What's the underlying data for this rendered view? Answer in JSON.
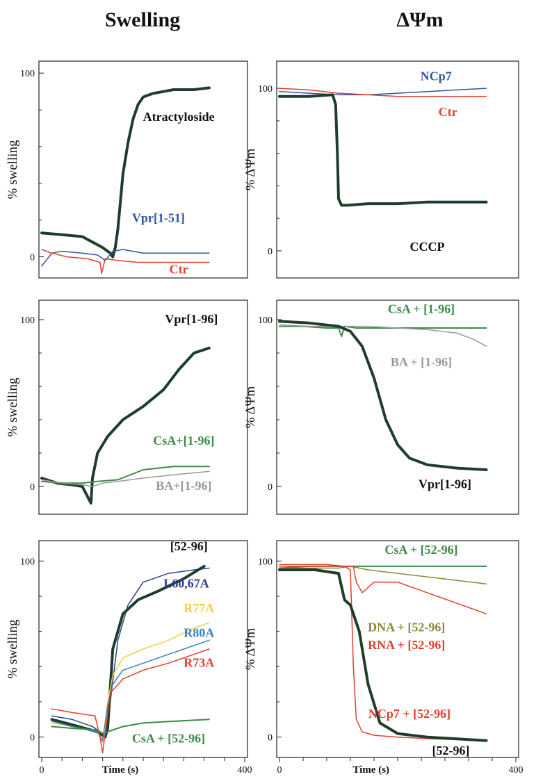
{
  "columns": [
    {
      "title": "Swelling"
    },
    {
      "title": "ΔΨm"
    }
  ],
  "chart_data": [
    {
      "type": "line",
      "panel": "swelling-top",
      "column": 0,
      "row": 0,
      "ylabel": "% swelling",
      "xlabel": "",
      "xlim": [
        0,
        400
      ],
      "ylim": [
        -10,
        105
      ],
      "yticks": [
        "0",
        "100"
      ],
      "series": [
        {
          "name": "Atractyloside",
          "color": "#1f3d2b",
          "width": 4,
          "x": [
            0,
            40,
            80,
            100,
            120,
            135,
            140,
            145,
            150,
            155,
            160,
            170,
            180,
            190,
            200,
            210,
            220,
            240,
            260,
            300,
            330
          ],
          "y": [
            13,
            12,
            11,
            8,
            5,
            2,
            0,
            5,
            15,
            30,
            45,
            62,
            75,
            83,
            87,
            88,
            89,
            90,
            91,
            91,
            92
          ]
        },
        {
          "name": "Vpr[1-51]",
          "color": "#2f56a0",
          "width": 1.5,
          "x": [
            0,
            20,
            40,
            80,
            110,
            125,
            140,
            160,
            200,
            260,
            330
          ],
          "y": [
            -5,
            2,
            3,
            2,
            1,
            -2,
            3,
            4,
            2,
            2,
            2
          ]
        },
        {
          "name": "Ctr",
          "color": "#e0402f",
          "width": 1.5,
          "x": [
            0,
            20,
            50,
            90,
            115,
            118,
            125,
            150,
            190,
            260,
            330
          ],
          "y": [
            4,
            2,
            0,
            -1,
            -3,
            -9,
            -1,
            -2,
            -3,
            -3,
            -3
          ]
        }
      ],
      "annotations": [
        {
          "text": "Atractyloside",
          "color": "#111111",
          "x": 270,
          "y": 74
        },
        {
          "text": "Vpr[1-51]",
          "color": "#2f56a0",
          "x": 230,
          "y": 19
        },
        {
          "text": "Ctr",
          "color": "#e0402f",
          "x": 270,
          "y": -9
        }
      ]
    },
    {
      "type": "line",
      "panel": "dpsim-top",
      "column": 1,
      "row": 0,
      "ylabel": "% ΔΨm",
      "xlabel": "",
      "xlim": [
        0,
        400
      ],
      "ylim": [
        -15,
        115
      ],
      "yticks": [
        "0",
        "100"
      ],
      "series": [
        {
          "name": "NCp7",
          "color": "#2f56a0",
          "width": 1.5,
          "x": [
            0,
            50,
            100,
            150,
            200,
            250,
            300,
            350
          ],
          "y": [
            98,
            97,
            96,
            96,
            97,
            98,
            99,
            100
          ]
        },
        {
          "name": "Ctr",
          "color": "#e0402f",
          "width": 1.5,
          "x": [
            0,
            50,
            100,
            150,
            200,
            250,
            300,
            350
          ],
          "y": [
            100,
            99,
            97,
            96,
            95,
            95,
            95,
            95
          ]
        },
        {
          "name": "CCCP",
          "color": "#1f3d2b",
          "width": 4,
          "x": [
            0,
            50,
            90,
            95,
            98,
            100,
            105,
            110,
            115,
            150,
            200,
            250,
            300,
            350
          ],
          "y": [
            95,
            95,
            96,
            90,
            60,
            32,
            28,
            28,
            28,
            29,
            29,
            30,
            30,
            30
          ]
        }
      ],
      "annotations": [
        {
          "text": "NCp7",
          "color": "#2f56a0",
          "x": 265,
          "y": 105
        },
        {
          "text": "Ctr",
          "color": "#e0402f",
          "x": 285,
          "y": 83
        },
        {
          "text": "CCCP",
          "color": "#111111",
          "x": 250,
          "y": 0
        }
      ]
    },
    {
      "type": "line",
      "panel": "swelling-middle",
      "column": 0,
      "row": 1,
      "ylabel": "% swelling",
      "xlabel": "",
      "xlim": [
        0,
        400
      ],
      "ylim": [
        -15,
        110
      ],
      "yticks": [
        "0",
        "100"
      ],
      "series": [
        {
          "name": "Vpr[1-96]",
          "color": "#1f3d2b",
          "width": 4,
          "x": [
            0,
            30,
            60,
            80,
            97,
            100,
            110,
            130,
            160,
            200,
            240,
            270,
            300,
            330
          ],
          "y": [
            5,
            2,
            1,
            0,
            -10,
            5,
            20,
            30,
            40,
            48,
            58,
            70,
            80,
            83
          ]
        },
        {
          "name": "CsA+[1-96]",
          "color": "#3d8a4a",
          "width": 2,
          "x": [
            0,
            40,
            80,
            110,
            150,
            200,
            260,
            330
          ],
          "y": [
            3,
            2,
            2,
            3,
            4,
            10,
            12,
            12
          ]
        },
        {
          "name": "BA+[1-96]",
          "color": "#999999",
          "width": 1.5,
          "x": [
            0,
            40,
            80,
            100,
            120,
            150,
            200,
            260,
            330
          ],
          "y": [
            4,
            2,
            1,
            0,
            2,
            3,
            5,
            7,
            9
          ]
        }
      ],
      "annotations": [
        {
          "text": "Vpr[1-96]",
          "color": "#111111",
          "x": 295,
          "y": 98
        },
        {
          "text": "CsA+[1-96]",
          "color": "#3d8a4a",
          "x": 280,
          "y": 25
        },
        {
          "text": "BA+[1-96]",
          "color": "#999999",
          "x": 280,
          "y": -2
        }
      ]
    },
    {
      "type": "line",
      "panel": "dpsim-middle",
      "column": 1,
      "row": 1,
      "ylabel": "% ΔΨm",
      "xlabel": "",
      "xlim": [
        0,
        400
      ],
      "ylim": [
        -15,
        110
      ],
      "yticks": [
        "0",
        "100"
      ],
      "series": [
        {
          "name": "CsA + [1-96]",
          "color": "#3d8a4a",
          "width": 2,
          "x": [
            0,
            40,
            80,
            100,
            105,
            110,
            130,
            200,
            260,
            350
          ],
          "y": [
            96,
            96,
            95,
            95,
            90,
            96,
            95,
            95,
            95,
            95
          ]
        },
        {
          "name": "BA + [1-96]",
          "color": "#999999",
          "width": 1.5,
          "x": [
            0,
            50,
            100,
            150,
            200,
            250,
            300,
            330,
            350
          ],
          "y": [
            97,
            96,
            96,
            96,
            95,
            94,
            92,
            88,
            84
          ]
        },
        {
          "name": "Vpr[1-96]",
          "color": "#1f3d2b",
          "width": 4,
          "x": [
            0,
            50,
            100,
            120,
            140,
            160,
            180,
            200,
            220,
            250,
            300,
            350
          ],
          "y": [
            99,
            98,
            96,
            93,
            84,
            65,
            40,
            25,
            17,
            13,
            11,
            10
          ]
        }
      ],
      "annotations": [
        {
          "text": "CsA + [1-96]",
          "color": "#3d8a4a",
          "x": 240,
          "y": 104
        },
        {
          "text": "BA + [1-96]",
          "color": "#999999",
          "x": 240,
          "y": 72
        },
        {
          "text": "Vpr[1-96]",
          "color": "#111111",
          "x": 280,
          "y": -1
        }
      ]
    },
    {
      "type": "line",
      "panel": "swelling-bottom",
      "column": 0,
      "row": 2,
      "ylabel": "% swelling",
      "xlabel": "Time (s)",
      "xlim": [
        0,
        400
      ],
      "ylim": [
        -10,
        110
      ],
      "yticks": [
        "0",
        "100"
      ],
      "xticks": [
        "0",
        "400"
      ],
      "series": [
        {
          "name": "L60,67A",
          "color": "#2f3f8f",
          "width": 1.5,
          "x": [
            20,
            60,
            100,
            115,
            125,
            135,
            150,
            170,
            200,
            250,
            300,
            330
          ],
          "y": [
            12,
            10,
            6,
            3,
            0,
            20,
            55,
            75,
            88,
            93,
            95,
            96
          ]
        },
        {
          "name": "[52-96]",
          "color": "#1f3d2b",
          "width": 4,
          "x": [
            20,
            60,
            110,
            125,
            130,
            140,
            160,
            190,
            230,
            280,
            320
          ],
          "y": [
            10,
            7,
            3,
            0,
            5,
            50,
            70,
            78,
            83,
            90,
            97
          ]
        },
        {
          "name": "R77A",
          "color": "#f0d040",
          "width": 1.5,
          "x": [
            20,
            60,
            110,
            120,
            130,
            140,
            160,
            200,
            250,
            300,
            330
          ],
          "y": [
            8,
            6,
            3,
            -3,
            20,
            35,
            45,
            50,
            55,
            62,
            65
          ]
        },
        {
          "name": "R80A",
          "color": "#3a7fc0",
          "width": 1.5,
          "x": [
            20,
            60,
            110,
            120,
            130,
            140,
            160,
            200,
            250,
            300,
            330
          ],
          "y": [
            9,
            6,
            3,
            -2,
            18,
            30,
            38,
            42,
            47,
            52,
            55
          ]
        },
        {
          "name": "R73A",
          "color": "#e0402f",
          "width": 1.5,
          "x": [
            20,
            60,
            105,
            115,
            120,
            135,
            160,
            200,
            250,
            300,
            330
          ],
          "y": [
            16,
            14,
            12,
            0,
            -9,
            25,
            33,
            38,
            42,
            47,
            50
          ]
        },
        {
          "name": "CsA + [52-96]",
          "color": "#3d8a4a",
          "width": 2,
          "x": [
            20,
            60,
            110,
            120,
            140,
            160,
            200,
            260,
            330
          ],
          "y": [
            6,
            5,
            4,
            2,
            4,
            6,
            8,
            9,
            10
          ]
        }
      ],
      "annotations": [
        {
          "text": "[52-96]",
          "color": "#111111",
          "x": 290,
          "y": 106
        },
        {
          "text": "L60,67A",
          "color": "#2f3f8f",
          "x": 285,
          "y": 85
        },
        {
          "text": "R77A",
          "color": "#f0d040",
          "x": 310,
          "y": 71
        },
        {
          "text": "R80A",
          "color": "#3a7fc0",
          "x": 310,
          "y": 57
        },
        {
          "text": "R73A",
          "color": "#e0402f",
          "x": 310,
          "y": 40
        },
        {
          "text": "CsA + [52-96]",
          "color": "#3d8a4a",
          "x": 250,
          "y": -3
        }
      ]
    },
    {
      "type": "line",
      "panel": "dpsim-bottom",
      "column": 1,
      "row": 2,
      "ylabel": "% ΔΨm",
      "xlabel": "Time (s)",
      "xlim": [
        0,
        400
      ],
      "ylim": [
        -10,
        110
      ],
      "yticks": [
        "0",
        "100"
      ],
      "xticks": [
        "0",
        "400"
      ],
      "series": [
        {
          "name": "CsA + [52-96]",
          "color": "#3d8a4a",
          "width": 2,
          "x": [
            0,
            50,
            100,
            130,
            200,
            260,
            350
          ],
          "y": [
            96,
            97,
            97,
            97,
            97,
            97,
            97
          ]
        },
        {
          "name": "DNA + [52-96]",
          "color": "#8a8a3a",
          "width": 1.5,
          "x": [
            0,
            50,
            100,
            120,
            150,
            200,
            250,
            300,
            350
          ],
          "y": [
            96,
            96,
            96,
            97,
            95,
            93,
            91,
            89,
            87
          ]
        },
        {
          "name": "RNA + [52-96]",
          "color": "#e0402f",
          "width": 1.5,
          "x": [
            0,
            80,
            100,
            125,
            130,
            140,
            160,
            200,
            250,
            300,
            350
          ],
          "y": [
            97,
            97,
            97,
            97,
            88,
            82,
            88,
            88,
            82,
            76,
            70
          ]
        },
        {
          "name": "NCp7 + [52-96]",
          "color": "#e0402f",
          "width": 1.5,
          "x": [
            0,
            80,
            110,
            120,
            125,
            130,
            140,
            160,
            200,
            260,
            350
          ],
          "y": [
            98,
            98,
            97,
            95,
            40,
            10,
            3,
            1,
            0,
            -1,
            -2
          ]
        },
        {
          "name": "[52-96]",
          "color": "#1f3d2b",
          "width": 4,
          "x": [
            0,
            60,
            100,
            110,
            120,
            135,
            150,
            170,
            200,
            250,
            350
          ],
          "y": [
            95,
            95,
            93,
            78,
            75,
            60,
            30,
            8,
            2,
            0,
            -2
          ]
        }
      ],
      "annotations": [
        {
          "text": "CsA + [52-96]",
          "color": "#3d8a4a",
          "x": 240,
          "y": 104
        },
        {
          "text": "DNA + [52-96]",
          "color": "#8a8a3a",
          "x": 215,
          "y": 60
        },
        {
          "text": "RNA + [52-96]",
          "color": "#e0402f",
          "x": 215,
          "y": 50
        },
        {
          "text": "NCp7 + [52-96]",
          "color": "#e0402f",
          "x": 220,
          "y": 11
        },
        {
          "text": "[52-96]",
          "color": "#111111",
          "x": 290,
          "y": -10
        }
      ]
    }
  ]
}
